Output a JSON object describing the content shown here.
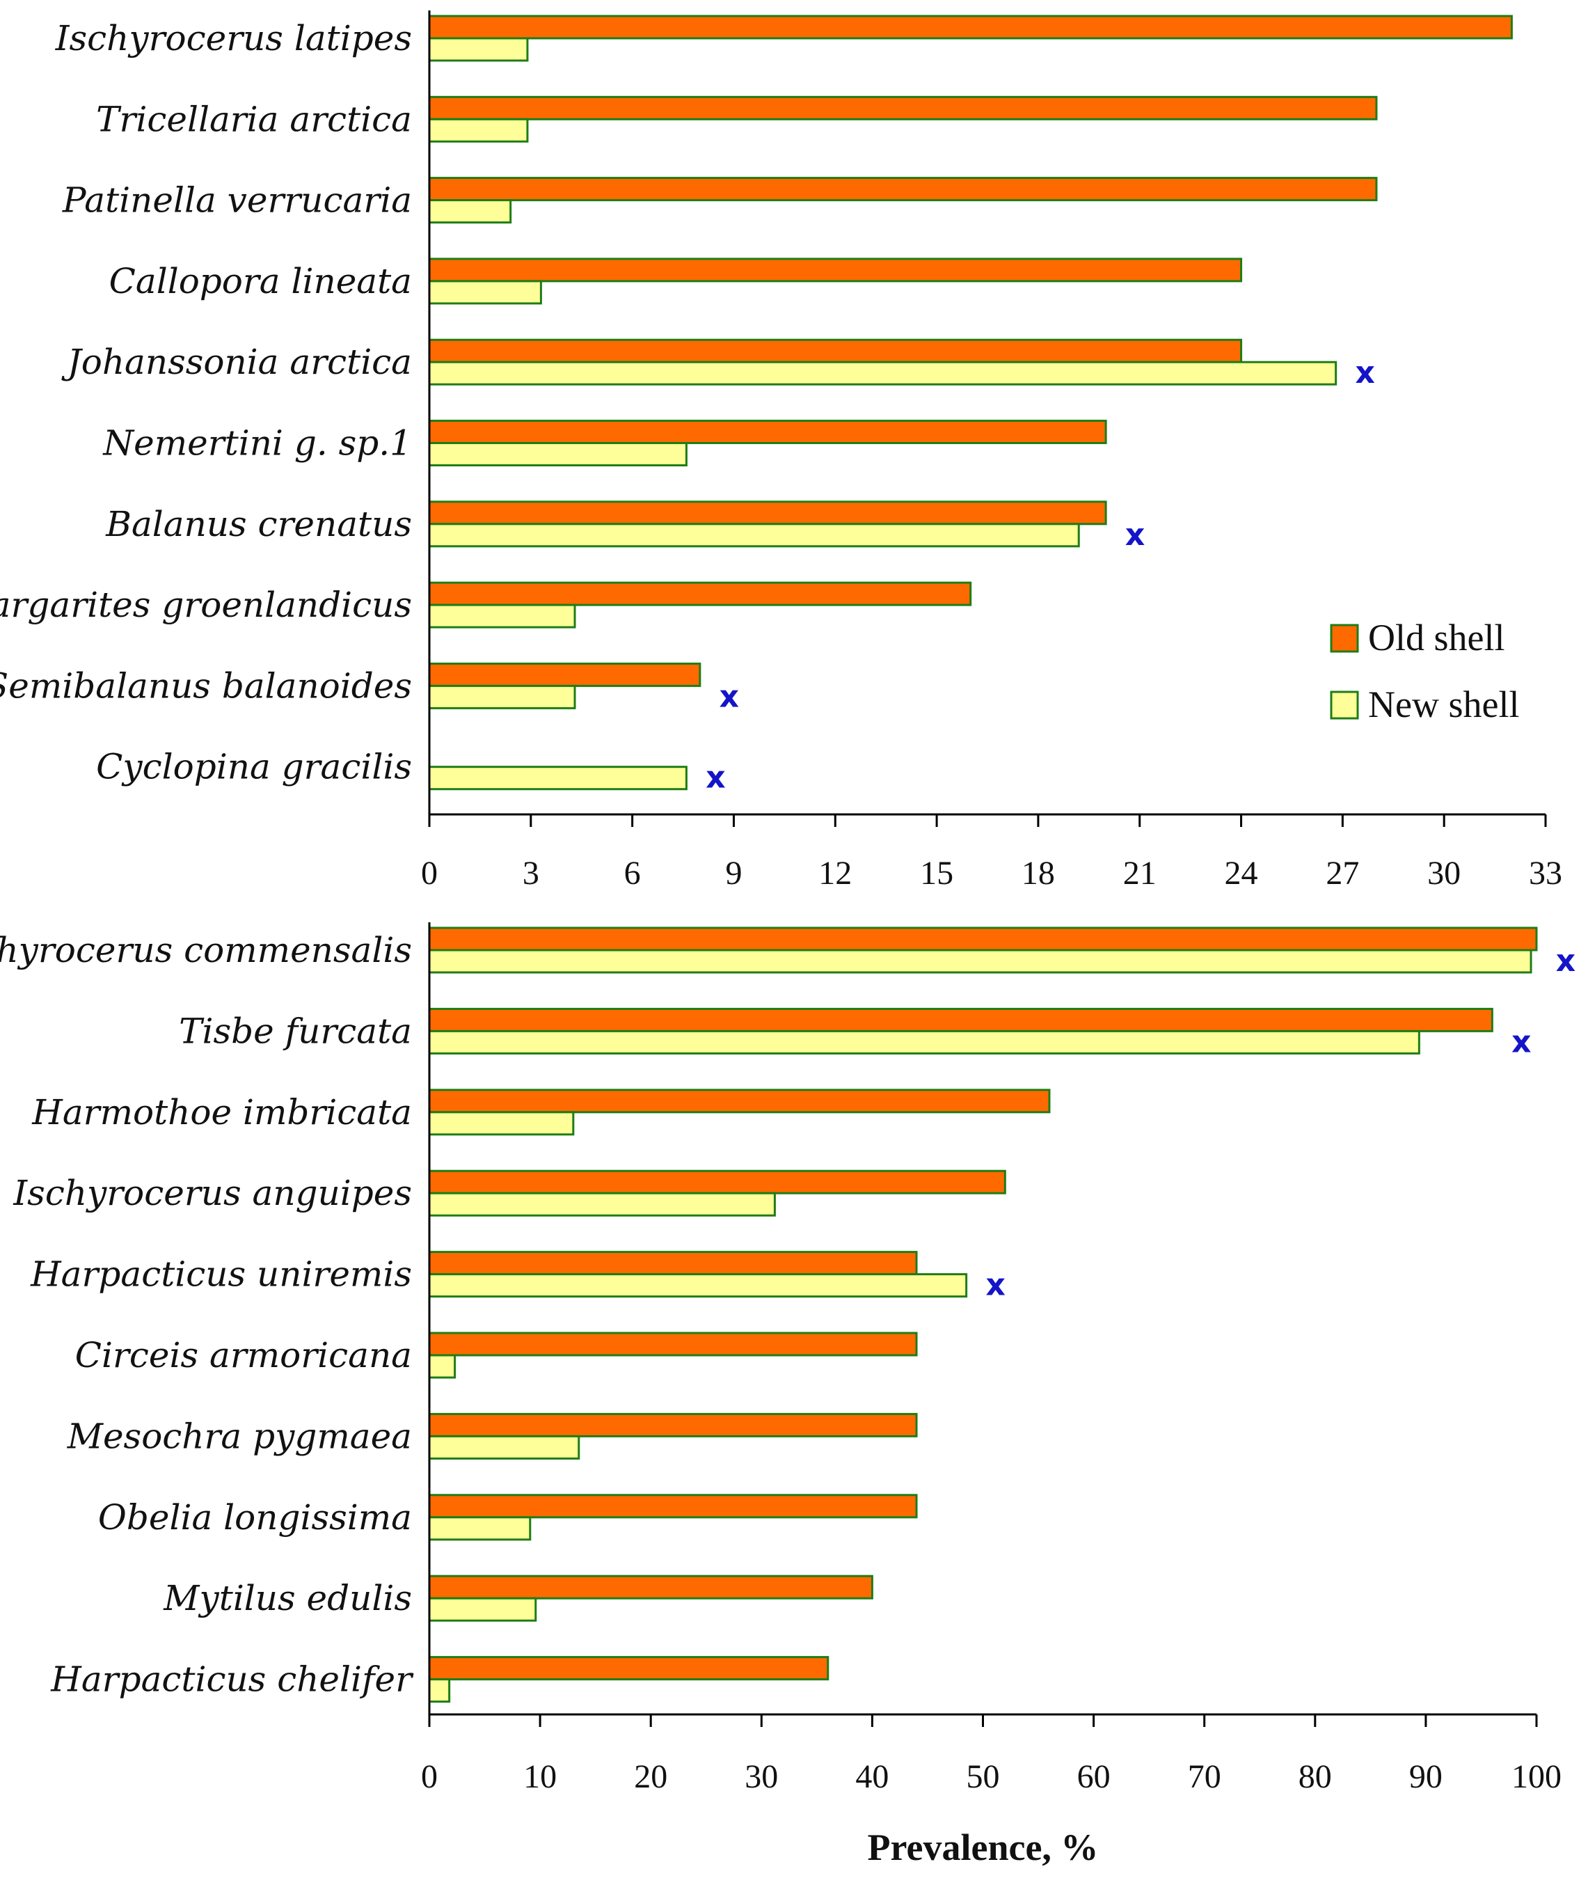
{
  "colors": {
    "old": "#ff6a00",
    "new": "#ffff99",
    "border": "#1e7d16",
    "mark": "#1414c8",
    "axis": "#000000"
  },
  "legend": {
    "old_label": "Old shell",
    "new_label": "New shell"
  },
  "chart_data": [
    {
      "type": "bar",
      "orientation": "horizontal",
      "categories": [
        "Ischyrocerus latipes",
        "Tricellaria arctica",
        "Patinella verrucaria",
        "Callopora lineata",
        "Johanssonia arctica",
        "Nemertini g. sp.1",
        "Balanus crenatus",
        "Margarites groenlandicus",
        "Semibalanus balanoides",
        "Cyclopina gracilis"
      ],
      "series": [
        {
          "name": "Old shell",
          "values": [
            32,
            28,
            28,
            24,
            24,
            20,
            20,
            16,
            8,
            0
          ]
        },
        {
          "name": "New shell",
          "values": [
            2.9,
            2.9,
            2.4,
            3.3,
            26.8,
            7.6,
            19.2,
            4.3,
            4.3,
            7.6
          ]
        }
      ],
      "marks": [
        "",
        "",
        "",
        "",
        "x",
        "",
        "x",
        "",
        "x",
        "x"
      ],
      "xlim": [
        0,
        33
      ],
      "xticks": [
        "0",
        "3",
        "6",
        "9",
        "12",
        "15",
        "18",
        "21",
        "24",
        "27",
        "30",
        "33"
      ],
      "xlabel": ""
    },
    {
      "type": "bar",
      "orientation": "horizontal",
      "categories": [
        "Ischyrocerus commensalis",
        "Tisbe furcata",
        "Harmothoe imbricata",
        "Ischyrocerus anguipes",
        "Harpacticus uniremis",
        "Circeis armoricana",
        "Mesochra pygmaea",
        "Obelia longissima",
        "Mytilus edulis",
        "Harpacticus chelifer"
      ],
      "series": [
        {
          "name": "Old shell",
          "values": [
            100,
            96,
            56,
            52,
            44,
            44,
            44,
            44,
            40,
            36
          ]
        },
        {
          "name": "New shell",
          "values": [
            99.5,
            89.4,
            13,
            31.2,
            48.5,
            2.3,
            13.5,
            9.1,
            9.6,
            1.8
          ]
        }
      ],
      "marks": [
        "x",
        "x",
        "",
        "",
        "x",
        "",
        "",
        "",
        "",
        ""
      ],
      "xlim": [
        0,
        100
      ],
      "xticks": [
        "0",
        "10",
        "20",
        "30",
        "40",
        "50",
        "60",
        "70",
        "80",
        "90",
        "100"
      ],
      "xlabel": "Prevalence, %"
    }
  ]
}
